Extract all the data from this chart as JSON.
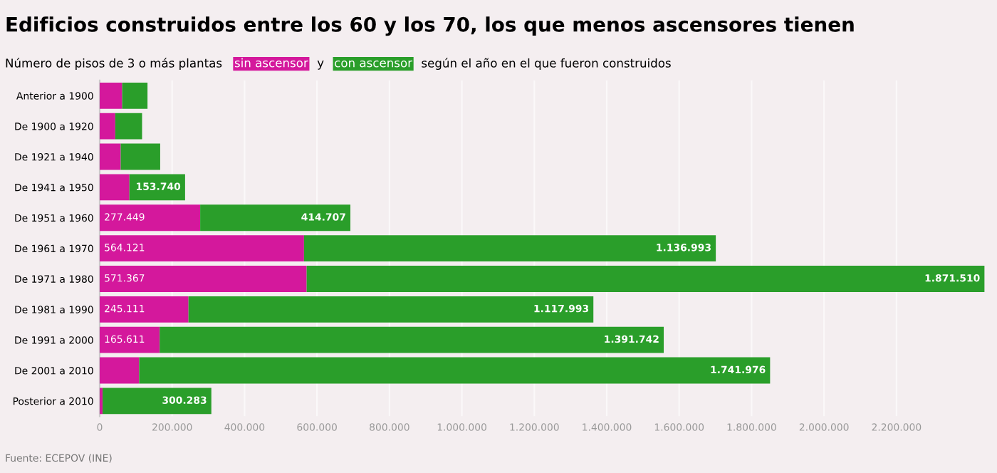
{
  "chart_data": {
    "type": "bar",
    "orientation": "horizontal",
    "stacked": true,
    "title": "Edificios construidos entre los 60 y los 70, los que menos ascensores tienen",
    "subtitle": "Número de pisos de 3 o más plantas",
    "categories": [
      "Anterior a 1900",
      "De 1900 a 1920",
      "De 1921 a 1940",
      "De 1941 a 1950",
      "De 1951 a 1960",
      "De 1961 a 1970",
      "De 1971 a 1980",
      "De 1981 a 1990",
      "De 1991 a 2000",
      "De 2001 a 2010",
      "Posterior a 2010"
    ],
    "series": [
      {
        "name": "sin ascensor",
        "color": "#d4189c",
        "values": [
          62000,
          43000,
          58000,
          82000,
          277449,
          564121,
          571367,
          245111,
          165611,
          109000,
          8000
        ],
        "value_labels": [
          null,
          null,
          null,
          null,
          "277.449",
          "564.121",
          "571.367",
          "245.111",
          "165.611",
          null,
          null
        ]
      },
      {
        "name": "con ascensor",
        "color": "#2a9e2a",
        "values": [
          70000,
          74000,
          109000,
          153740,
          414707,
          1136993,
          1871510,
          1117993,
          1391742,
          1741976,
          300283
        ],
        "value_labels": [
          null,
          null,
          null,
          "153.740",
          "414.707",
          "1.136.993",
          "1.871.510",
          "1.117.993",
          "1.391.742",
          "1.741.976",
          "300.283"
        ]
      }
    ],
    "xlim": [
      0,
      2450000
    ],
    "xticks": [
      0,
      {
        "value": 200000,
        "label": "200.000"
      },
      {
        "value": 400000,
        "label": "400.000"
      },
      {
        "value": 600000,
        "label": "600.000"
      },
      {
        "value": 800000,
        "label": "800.000"
      },
      {
        "value": 1000000,
        "label": "1.000.000"
      },
      {
        "value": 1200000,
        "label": "1.200.000"
      },
      {
        "value": 1400000,
        "label": "1.400.000"
      },
      {
        "value": 1600000,
        "label": "1.600.000"
      },
      {
        "value": 1800000,
        "label": "1.800.000"
      },
      {
        "value": 2000000,
        "label": "2.000.000"
      },
      {
        "value": 2200000,
        "label": "2.200.000"
      }
    ],
    "grid": "x",
    "annotations": [
      "y",
      "según el año en el que fueron construidos",
      "Fuente: ECEPOV (INE)"
    ]
  }
}
